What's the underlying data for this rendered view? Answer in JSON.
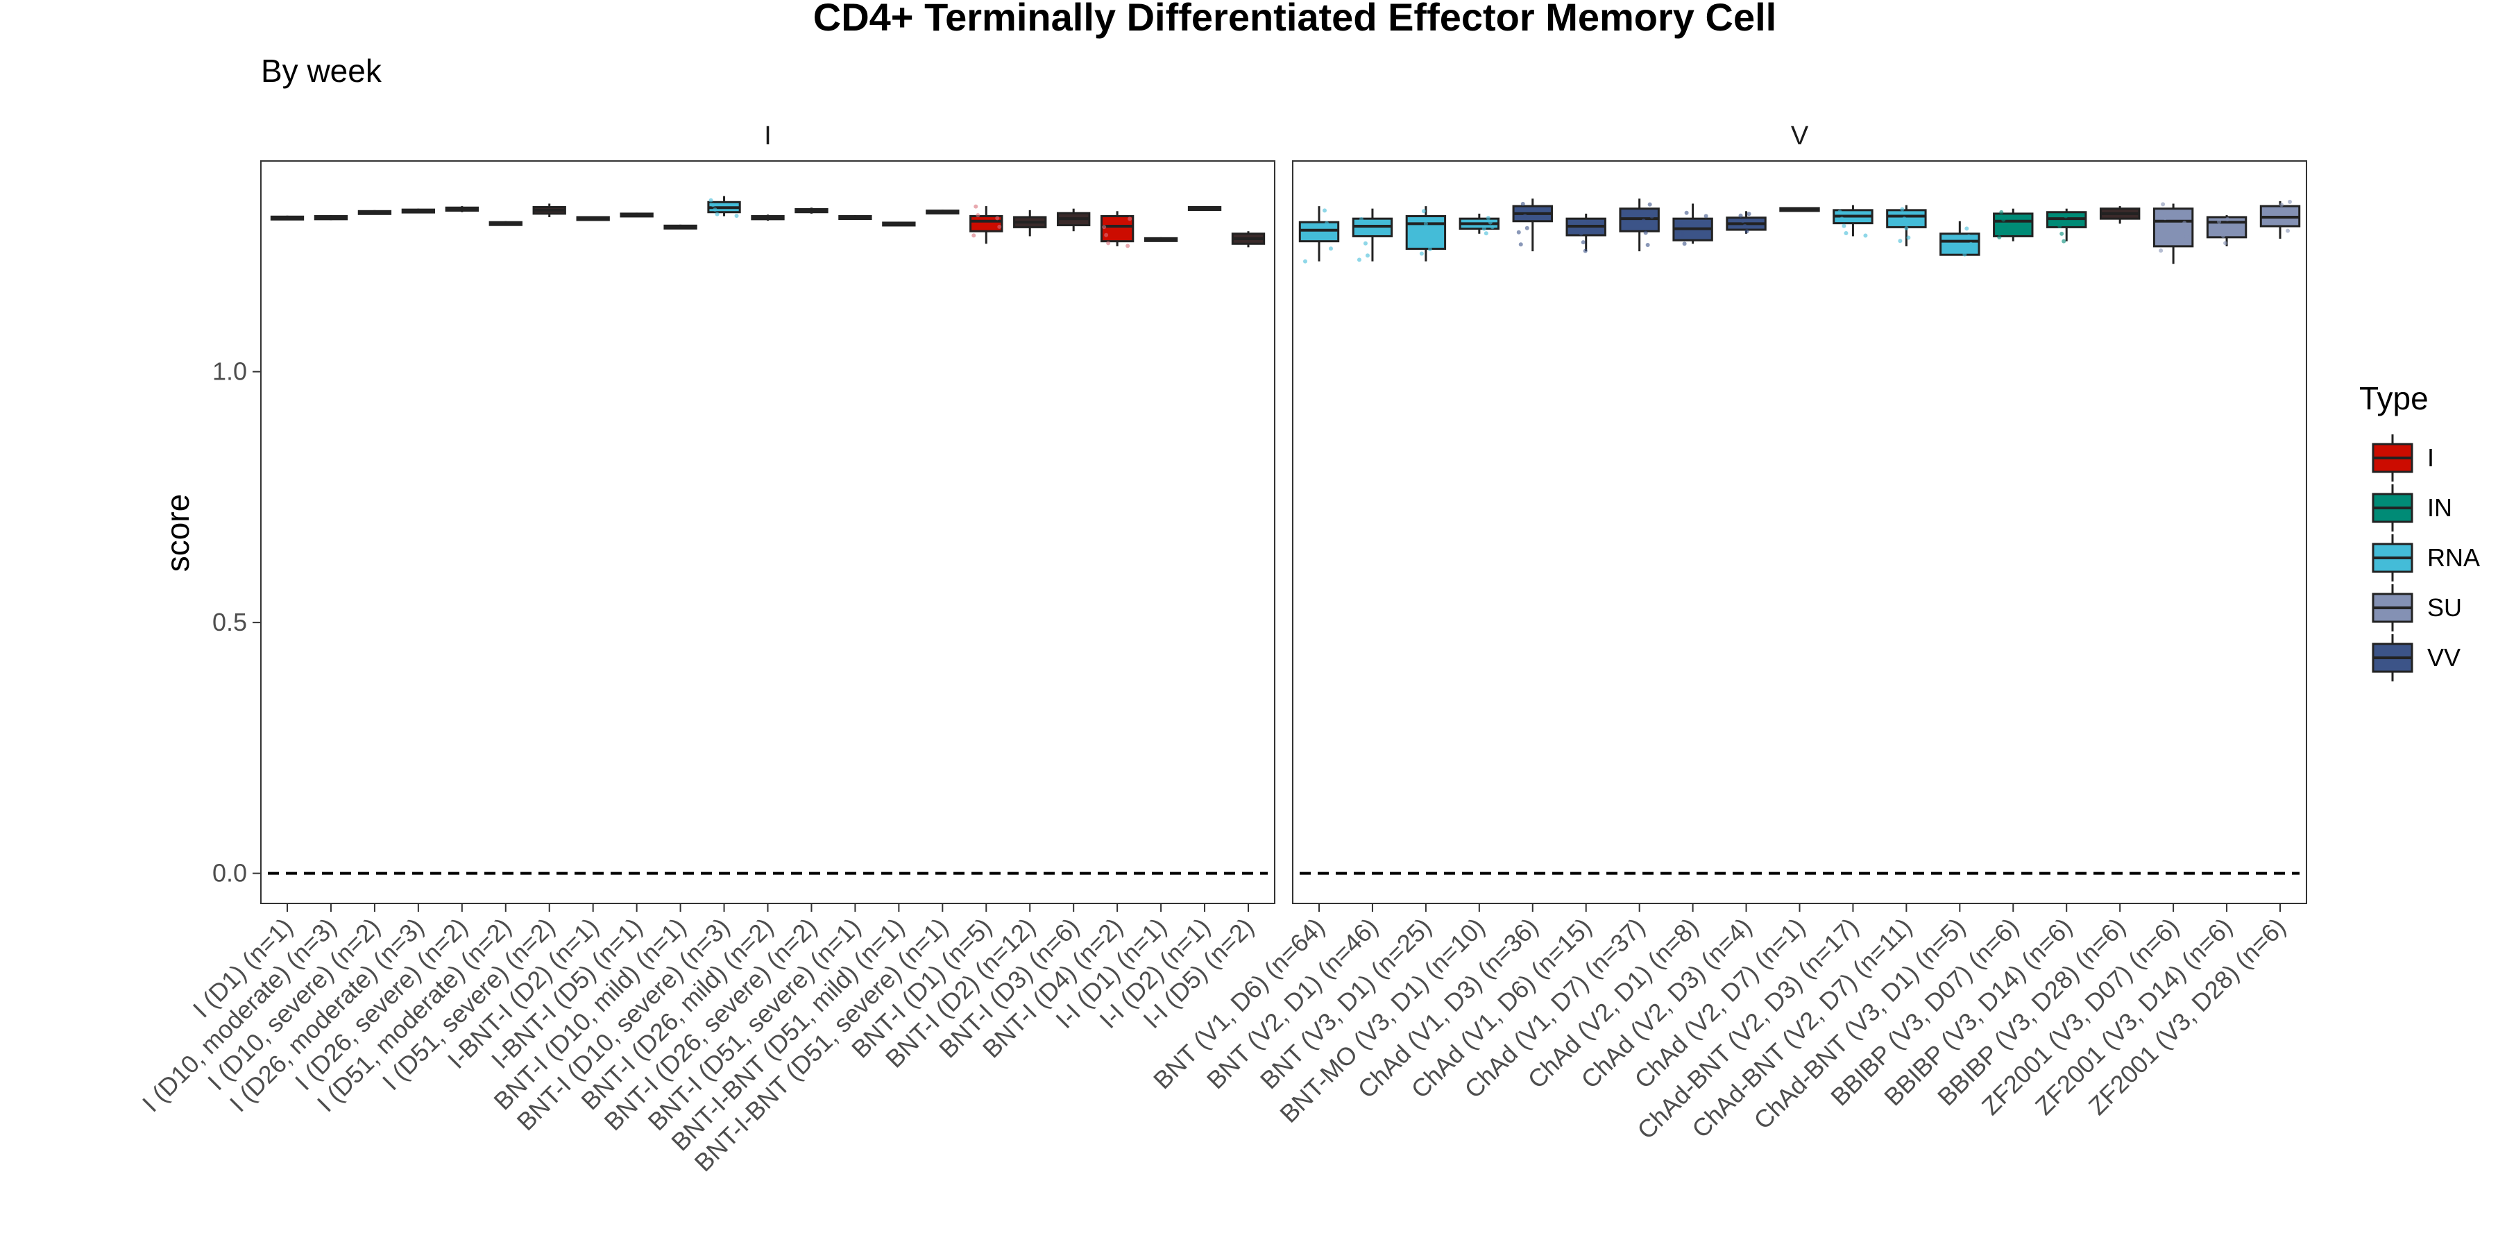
{
  "chart_data": {
    "type": "box",
    "title": "CD4+ Terminally Differentiated Effector Memory Cell",
    "subtitle": "By week",
    "ylabel": "score",
    "xlabel": "",
    "ylim": [
      -0.06,
      1.42
    ],
    "yticks": [
      0.0,
      0.5,
      1.0
    ],
    "ytick_labels": [
      "0.0",
      "0.5",
      "1.0"
    ],
    "reference_line": 0.0,
    "grid": false,
    "legend": {
      "title": "Type",
      "position": "right",
      "entries": [
        {
          "name": "I",
          "color": "#CC0C00"
        },
        {
          "name": "IN",
          "color": "#008B76"
        },
        {
          "name": "RNA",
          "color": "#44BCD8"
        },
        {
          "name": "SU",
          "color": "#8491B4"
        },
        {
          "name": "VV",
          "color": "#3C5488"
        }
      ]
    },
    "type_colors": {
      "I": "#CC0C00",
      "IN": "#008B76",
      "RNA": "#44BCD8",
      "SU": "#8491B4",
      "VV": "#3C5488",
      "none": "#3a2a2a"
    },
    "panels": [
      {
        "label": "I",
        "categories": [
          {
            "label": "I (D1) (n=1)",
            "type": "none",
            "q1": 1.305,
            "median": 1.307,
            "q3": 1.309,
            "lo": 1.303,
            "hi": 1.311
          },
          {
            "label": "I (D10, moderate) (n=3)",
            "type": "none",
            "q1": 1.304,
            "median": 1.307,
            "q3": 1.31,
            "lo": 1.302,
            "hi": 1.312
          },
          {
            "label": "I (D10, severe) (n=2)",
            "type": "none",
            "q1": 1.316,
            "median": 1.318,
            "q3": 1.32,
            "lo": 1.314,
            "hi": 1.322
          },
          {
            "label": "I (D26, moderate) (n=3)",
            "type": "none",
            "q1": 1.318,
            "median": 1.32,
            "q3": 1.323,
            "lo": 1.316,
            "hi": 1.325
          },
          {
            "label": "I (D26, severe) (n=2)",
            "type": "none",
            "q1": 1.321,
            "median": 1.324,
            "q3": 1.327,
            "lo": 1.318,
            "hi": 1.33
          },
          {
            "label": "I (D51, moderate) (n=2)",
            "type": "none",
            "q1": 1.294,
            "median": 1.296,
            "q3": 1.298,
            "lo": 1.292,
            "hi": 1.3
          },
          {
            "label": "I (D51, severe) (n=2)",
            "type": "none",
            "q1": 1.315,
            "median": 1.322,
            "q3": 1.328,
            "lo": 1.308,
            "hi": 1.335
          },
          {
            "label": "I-BNT-I (D2) (n=1)",
            "type": "none",
            "q1": 1.304,
            "median": 1.306,
            "q3": 1.308,
            "lo": 1.302,
            "hi": 1.31
          },
          {
            "label": "I-BNT-I (D5) (n=1)",
            "type": "none",
            "q1": 1.311,
            "median": 1.313,
            "q3": 1.315,
            "lo": 1.309,
            "hi": 1.317
          },
          {
            "label": "BNT-I (D10, mild) (n=1)",
            "type": "none",
            "q1": 1.287,
            "median": 1.289,
            "q3": 1.291,
            "lo": 1.285,
            "hi": 1.293
          },
          {
            "label": "BNT-I (D10, severe) (n=3)",
            "type": "RNA",
            "q1": 1.318,
            "median": 1.327,
            "q3": 1.338,
            "lo": 1.31,
            "hi": 1.35
          },
          {
            "label": "BNT-I (D26, mild) (n=2)",
            "type": "none",
            "q1": 1.304,
            "median": 1.307,
            "q3": 1.31,
            "lo": 1.301,
            "hi": 1.313
          },
          {
            "label": "BNT-I (D26, severe) (n=2)",
            "type": "none",
            "q1": 1.318,
            "median": 1.321,
            "q3": 1.324,
            "lo": 1.315,
            "hi": 1.327
          },
          {
            "label": "BNT-I (D51, severe) (n=1)",
            "type": "none",
            "q1": 1.306,
            "median": 1.308,
            "q3": 1.31,
            "lo": 1.304,
            "hi": 1.312
          },
          {
            "label": "BNT-I-BNT (D51, mild) (n=1)",
            "type": "none",
            "q1": 1.293,
            "median": 1.295,
            "q3": 1.297,
            "lo": 1.291,
            "hi": 1.299
          },
          {
            "label": "BNT-I-BNT (D51, severe) (n=1)",
            "type": "none",
            "q1": 1.317,
            "median": 1.319,
            "q3": 1.321,
            "lo": 1.315,
            "hi": 1.323
          },
          {
            "label": "BNT-I (D1) (n=5)",
            "type": "I",
            "q1": 1.28,
            "median": 1.3,
            "q3": 1.31,
            "lo": 1.255,
            "hi": 1.33
          },
          {
            "label": "BNT-I (D2) (n=12)",
            "type": "none",
            "q1": 1.288,
            "median": 1.298,
            "q3": 1.308,
            "lo": 1.27,
            "hi": 1.322
          },
          {
            "label": "BNT-I (D3) (n=6)",
            "type": "none",
            "q1": 1.292,
            "median": 1.305,
            "q3": 1.316,
            "lo": 1.28,
            "hi": 1.325
          },
          {
            "label": "BNT-I (D4) (n=2)",
            "type": "I",
            "q1": 1.26,
            "median": 1.29,
            "q3": 1.31,
            "lo": 1.25,
            "hi": 1.32
          },
          {
            "label": "I-I (D1) (n=1)",
            "type": "none",
            "q1": 1.262,
            "median": 1.264,
            "q3": 1.266,
            "lo": 1.26,
            "hi": 1.268
          },
          {
            "label": "I-I (D2) (n=1)",
            "type": "none",
            "q1": 1.324,
            "median": 1.326,
            "q3": 1.328,
            "lo": 1.322,
            "hi": 1.33
          },
          {
            "label": "I-I (D5) (n=2)",
            "type": "none",
            "q1": 1.255,
            "median": 1.265,
            "q3": 1.275,
            "lo": 1.248,
            "hi": 1.28
          }
        ]
      },
      {
        "label": "V",
        "categories": [
          {
            "label": "BNT (V1, D6) (n=64)",
            "type": "RNA",
            "q1": 1.26,
            "median": 1.282,
            "q3": 1.298,
            "lo": 1.22,
            "hi": 1.33
          },
          {
            "label": "BNT (V2, D1) (n=46)",
            "type": "RNA",
            "q1": 1.27,
            "median": 1.29,
            "q3": 1.305,
            "lo": 1.22,
            "hi": 1.325
          },
          {
            "label": "BNT (V3, D1) (n=25)",
            "type": "RNA",
            "q1": 1.245,
            "median": 1.295,
            "q3": 1.31,
            "lo": 1.22,
            "hi": 1.33
          },
          {
            "label": "BNT-MO (V3, D1) (n=10)",
            "type": "RNA",
            "q1": 1.285,
            "median": 1.295,
            "q3": 1.305,
            "lo": 1.275,
            "hi": 1.315
          },
          {
            "label": "ChAd (V1, D3) (n=36)",
            "type": "VV",
            "q1": 1.3,
            "median": 1.315,
            "q3": 1.33,
            "lo": 1.24,
            "hi": 1.345
          },
          {
            "label": "ChAd (V1, D6) (n=15)",
            "type": "VV",
            "q1": 1.272,
            "median": 1.29,
            "q3": 1.305,
            "lo": 1.24,
            "hi": 1.315
          },
          {
            "label": "ChAd (V1, D7) (n=37)",
            "type": "VV",
            "q1": 1.28,
            "median": 1.305,
            "q3": 1.325,
            "lo": 1.24,
            "hi": 1.345
          },
          {
            "label": "ChAd (V2, D1) (n=8)",
            "type": "VV",
            "q1": 1.262,
            "median": 1.285,
            "q3": 1.305,
            "lo": 1.255,
            "hi": 1.335
          },
          {
            "label": "ChAd (V2, D3) (n=4)",
            "type": "VV",
            "q1": 1.283,
            "median": 1.295,
            "q3": 1.307,
            "lo": 1.275,
            "hi": 1.32
          },
          {
            "label": "ChAd (V2, D7) (n=1)",
            "type": "none",
            "q1": 1.322,
            "median": 1.324,
            "q3": 1.326,
            "lo": 1.32,
            "hi": 1.328
          },
          {
            "label": "ChAd-BNT (V2, D3) (n=17)",
            "type": "RNA",
            "q1": 1.296,
            "median": 1.31,
            "q3": 1.322,
            "lo": 1.27,
            "hi": 1.332
          },
          {
            "label": "ChAd-BNT (V2, D7) (n=11)",
            "type": "RNA",
            "q1": 1.288,
            "median": 1.31,
            "q3": 1.322,
            "lo": 1.25,
            "hi": 1.332
          },
          {
            "label": "ChAd-BNT (V3, D1) (n=5)",
            "type": "RNA",
            "q1": 1.233,
            "median": 1.26,
            "q3": 1.275,
            "lo": 1.233,
            "hi": 1.3
          },
          {
            "label": "BBIBP (V3, D07) (n=6)",
            "type": "IN",
            "q1": 1.27,
            "median": 1.3,
            "q3": 1.315,
            "lo": 1.26,
            "hi": 1.325
          },
          {
            "label": "BBIBP (V3, D14) (n=6)",
            "type": "IN",
            "q1": 1.288,
            "median": 1.305,
            "q3": 1.318,
            "lo": 1.26,
            "hi": 1.325
          },
          {
            "label": "BBIBP (V3, D28) (n=6)",
            "type": "none",
            "q1": 1.305,
            "median": 1.315,
            "q3": 1.325,
            "lo": 1.295,
            "hi": 1.33
          },
          {
            "label": "ZF2001 (V3, D07) (n=6)",
            "type": "SU",
            "q1": 1.25,
            "median": 1.3,
            "q3": 1.325,
            "lo": 1.215,
            "hi": 1.335
          },
          {
            "label": "ZF2001 (V3, D14) (n=6)",
            "type": "SU",
            "q1": 1.268,
            "median": 1.298,
            "q3": 1.308,
            "lo": 1.25,
            "hi": 1.312
          },
          {
            "label": "ZF2001 (V3, D28) (n=6)",
            "type": "SU",
            "q1": 1.29,
            "median": 1.308,
            "q3": 1.33,
            "lo": 1.265,
            "hi": 1.34
          }
        ]
      }
    ]
  }
}
